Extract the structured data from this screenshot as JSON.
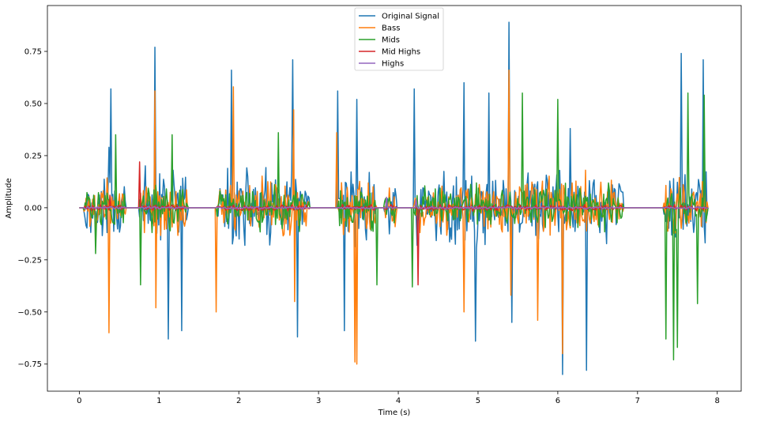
{
  "chart_data": {
    "type": "line",
    "title": "",
    "xlabel": "Time (s)",
    "ylabel": "Amplitude",
    "xlim": [
      -0.4,
      8.3
    ],
    "ylim": [
      -0.88,
      0.97
    ],
    "xticks": [
      0,
      1,
      2,
      3,
      4,
      5,
      6,
      7,
      8
    ],
    "yticks": [
      -0.75,
      -0.5,
      -0.25,
      0.0,
      0.25,
      0.5,
      0.75
    ],
    "xtick_labels": [
      "0",
      "1",
      "2",
      "3",
      "4",
      "5",
      "6",
      "7",
      "8"
    ],
    "ytick_labels": [
      "−0.75",
      "−0.50",
      "−0.25",
      "0.00",
      "0.25",
      "0.50",
      "0.75"
    ],
    "grid": false,
    "legend_position": "top-center",
    "x_range": [
      0,
      7.88
    ],
    "bursts": [
      [
        0.05,
        0.58
      ],
      [
        0.75,
        1.36
      ],
      [
        1.72,
        2.88
      ],
      [
        3.25,
        3.72
      ],
      [
        3.82,
        3.98
      ],
      [
        4.2,
        6.82
      ],
      [
        7.33,
        7.88
      ]
    ],
    "series": [
      {
        "name": "Original Signal",
        "color": "#1f77b4",
        "peaks": [
          [
            0.37,
            0.29
          ],
          [
            0.39,
            -0.51
          ],
          [
            0.4,
            0.57
          ],
          [
            0.95,
            0.77
          ],
          [
            1.12,
            -0.63
          ],
          [
            1.28,
            -0.59
          ],
          [
            1.91,
            0.66
          ],
          [
            2.68,
            0.71
          ],
          [
            2.73,
            -0.62
          ],
          [
            3.24,
            0.56
          ],
          [
            3.32,
            -0.59
          ],
          [
            3.48,
            0.52
          ],
          [
            4.2,
            0.57
          ],
          [
            4.82,
            0.6
          ],
          [
            4.97,
            -0.64
          ],
          [
            5.13,
            0.55
          ],
          [
            5.39,
            0.89
          ],
          [
            5.42,
            -0.55
          ],
          [
            6.06,
            -0.8
          ],
          [
            6.36,
            -0.78
          ],
          [
            6.15,
            0.38
          ],
          [
            7.55,
            0.74
          ],
          [
            7.82,
            0.71
          ]
        ],
        "amp_mul": 1.0
      },
      {
        "name": "Bass",
        "color": "#ff7f0e",
        "peaks": [
          [
            0.37,
            0.7
          ],
          [
            0.37,
            -0.6
          ],
          [
            0.95,
            0.56
          ],
          [
            0.96,
            -0.48
          ],
          [
            1.71,
            -0.5
          ],
          [
            1.93,
            0.58
          ],
          [
            2.69,
            0.47
          ],
          [
            2.7,
            -0.45
          ],
          [
            3.23,
            0.36
          ],
          [
            3.46,
            -0.74
          ],
          [
            3.48,
            -0.75
          ],
          [
            4.82,
            0.57
          ],
          [
            4.82,
            -0.5
          ],
          [
            5.39,
            0.66
          ],
          [
            5.41,
            -0.42
          ],
          [
            5.75,
            -0.54
          ],
          [
            6.06,
            -0.7
          ],
          [
            6.35,
            0.18
          ]
        ],
        "amp_mul": 0.75
      },
      {
        "name": "Mids",
        "color": "#2ca02c",
        "peaks": [
          [
            0.46,
            0.35
          ],
          [
            0.2,
            -0.22
          ],
          [
            0.77,
            -0.37
          ],
          [
            1.16,
            0.35
          ],
          [
            2.5,
            0.36
          ],
          [
            3.73,
            -0.37
          ],
          [
            4.17,
            -0.38
          ],
          [
            5.55,
            0.55
          ],
          [
            6.0,
            0.52
          ],
          [
            7.35,
            0.41
          ],
          [
            7.36,
            -0.63
          ],
          [
            7.45,
            -0.73
          ],
          [
            7.5,
            -0.67
          ],
          [
            7.63,
            0.55
          ],
          [
            7.75,
            -0.46
          ],
          [
            7.83,
            0.54
          ]
        ],
        "amp_mul": 0.6
      },
      {
        "name": "Mid Highs",
        "color": "#d62728",
        "peaks": [
          [
            0.76,
            0.22
          ],
          [
            4.25,
            -0.37
          ],
          [
            0.38,
            0.06
          ]
        ],
        "amp_mul": 0.08
      },
      {
        "name": "Highs",
        "color": "#9467bd",
        "peaks": [
          [
            3.85,
            0.05
          ],
          [
            4.22,
            0.04
          ]
        ],
        "amp_mul": 0.035
      }
    ]
  }
}
